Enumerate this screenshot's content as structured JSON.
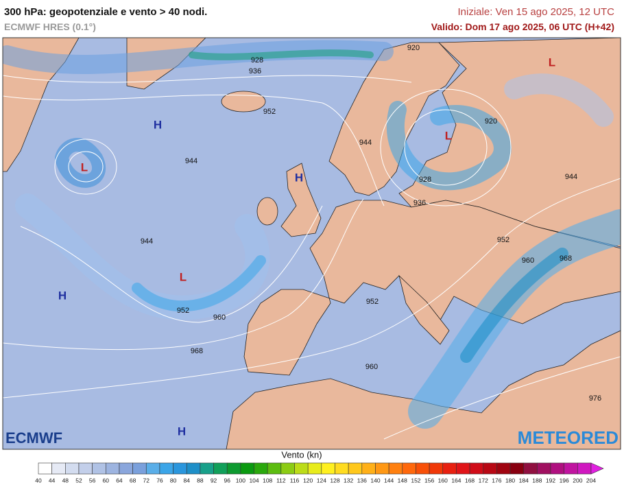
{
  "header": {
    "title": "300 hPa: geopotenziale e vento > 40 nodi.",
    "model": "ECMWF HRES (0.1°)",
    "init": "Iniziale: Ven 15 ago 2025, 12 UTC",
    "valid": "Valido: Dom 17 ago 2025, 06 UTC (H+42)"
  },
  "map": {
    "contour_labels": [
      928,
      936,
      920,
      952,
      944,
      944,
      920,
      928,
      936,
      944,
      944,
      952,
      960,
      968,
      952,
      952,
      960,
      968,
      960,
      976
    ],
    "centers": [
      "H",
      "L",
      "H",
      "L",
      "H",
      "L",
      "L",
      "H"
    ]
  },
  "logos": {
    "left": "ECMWF",
    "right": "METEORED"
  },
  "legend": {
    "title": "Vento (kn)",
    "ticks": [
      40,
      44,
      48,
      52,
      56,
      60,
      64,
      68,
      72,
      76,
      80,
      84,
      88,
      92,
      96,
      100,
      104,
      108,
      112,
      116,
      120,
      124,
      128,
      132,
      136,
      140,
      144,
      148,
      152,
      156,
      160,
      164,
      168,
      172,
      176,
      180,
      184,
      188,
      192,
      196,
      200,
      204
    ],
    "colors": [
      "#ffffff",
      "#e6eaf5",
      "#d3dcef",
      "#c3cfea",
      "#b0c2e5",
      "#9db4e0",
      "#8aa6dc",
      "#7aa0dc",
      "#5aaee8",
      "#3ba5e8",
      "#2a96dd",
      "#1e8fc8",
      "#18a08a",
      "#11a05a",
      "#0d9a30",
      "#0a9a10",
      "#2aa80c",
      "#5cbc10",
      "#8ccc14",
      "#bcdc18",
      "#e8ec1c",
      "#fff020",
      "#ffdc20",
      "#ffc81c",
      "#ffb018",
      "#ff9814",
      "#ff8010",
      "#ff680c",
      "#f85008",
      "#f03808",
      "#e82010",
      "#e01418",
      "#d00c18",
      "#b80814",
      "#a00410",
      "#880010",
      "#901040",
      "#a01060",
      "#b01080",
      "#c014a0",
      "#d018c0",
      "#e020e0"
    ]
  }
}
